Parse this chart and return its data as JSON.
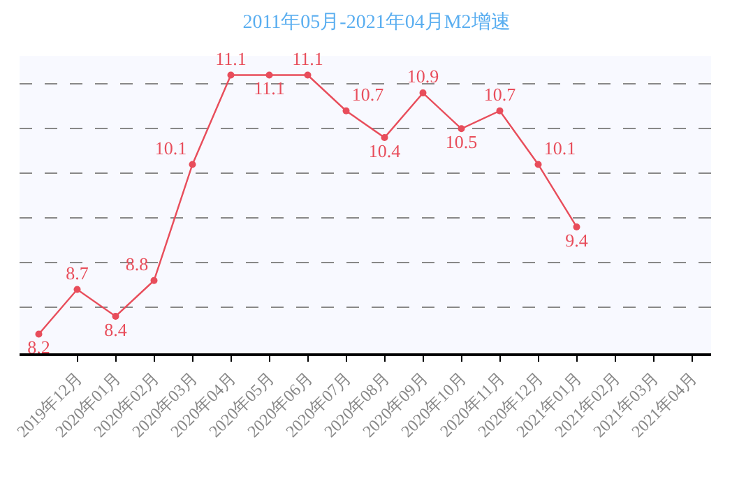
{
  "chart_data": {
    "type": "line",
    "title": "2011年05月-2021年04月M2增速",
    "categories": [
      null,
      "2019年12月",
      "2020年01月",
      "2020年02月",
      "2020年03月",
      "2020年04月",
      "2020年05月",
      "2020年06月",
      "2020年07月",
      "2020年08月",
      "2020年09月",
      "2020年10月",
      "2020年11月",
      "2020年12月",
      "2021年01月",
      "2021年02月",
      "2021年03月",
      "2021年04月"
    ],
    "series": [
      {
        "color": "#e84d5b",
        "values": [
          8.2,
          8.7,
          8.4,
          8.8,
          10.1,
          11.1,
          11.1,
          11.1,
          10.7,
          10.4,
          10.9,
          10.5,
          10.7,
          10.1,
          9.4,
          null,
          null,
          null
        ]
      }
    ],
    "data_labels": true,
    "grid": "y",
    "tick_labels": "x",
    "marker": "circle",
    "line_style": "solid"
  }
}
